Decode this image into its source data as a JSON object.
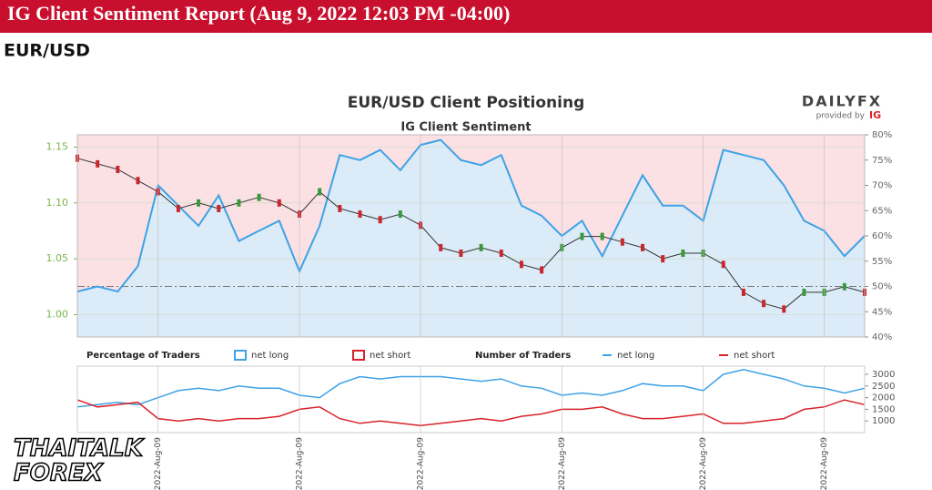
{
  "header": {
    "title": "IG Client Sentiment Report (Aug 9, 2022 12:03 PM -04:00)",
    "pair": "EUR/USD"
  },
  "logo": {
    "name": "DAILYFX",
    "provided": "provided by",
    "brand": "IG"
  },
  "watermark": {
    "line1": "THAITALK",
    "line2": "FOREX"
  },
  "chart_data": [
    {
      "type": "line",
      "title": "EUR/USD Client Positioning",
      "subtitle": "IG Client Sentiment",
      "categories": [
        null,
        null,
        null,
        null,
        "2022-Aug-09",
        null,
        null,
        null,
        null,
        null,
        null,
        "2022-Aug-09",
        null,
        null,
        null,
        null,
        null,
        "2022-Aug-09",
        null,
        null,
        null,
        null,
        null,
        null,
        "2022-Aug-09",
        null,
        null,
        null,
        null,
        null,
        null,
        "2022-Aug-09",
        null,
        null,
        null,
        null,
        null,
        "2022-Aug-09",
        null,
        null
      ],
      "ylim": [
        0.98,
        1.161
      ],
      "yticks": [
        {
          "value": 1,
          "label": "1.00"
        },
        1.05,
        {
          "value": 1.1,
          "label": "1.10"
        },
        1.15
      ],
      "y2lim": [
        40,
        80
      ],
      "y2ticks": [
        {
          "value": 40,
          "label": "40%"
        },
        {
          "value": 45,
          "label": "45%"
        },
        {
          "value": 50,
          "label": "50%"
        },
        {
          "value": 55,
          "label": "55%"
        },
        {
          "value": 60,
          "label": "60%"
        },
        {
          "value": 65,
          "label": "65%"
        },
        {
          "value": 70,
          "label": "70%"
        },
        {
          "value": 75,
          "label": "75%"
        },
        {
          "value": 80,
          "label": "80%"
        }
      ],
      "y2ref": 50,
      "grid": true,
      "legend_title": "Percentage of Traders",
      "legend_labels": [
        "net long",
        "net short"
      ],
      "legend_colors": [
        "#3ea2e6",
        "#d8232a"
      ],
      "series": [
        {
          "color": "#333333",
          "values": [
            1.14,
            1.135,
            1.13,
            1.12,
            1.11,
            1.095,
            1.1,
            1.095,
            1.1,
            1.105,
            1.1,
            1.09,
            1.11,
            1.095,
            1.09,
            1.085,
            1.09,
            1.08,
            1.06,
            1.055,
            1.06,
            1.055,
            1.045,
            1.04,
            1.06,
            1.07,
            1.07,
            1.065,
            1.06,
            1.05,
            1.055,
            1.055,
            1.045,
            1.02,
            1.01,
            1.005,
            1.02,
            1.02,
            1.025,
            1.02
          ]
        },
        {
          "name": "net long",
          "color": "#3ea2e6",
          "axis": "y2",
          "values": [
            49,
            50,
            49,
            54,
            70,
            66,
            62,
            68,
            59,
            61,
            63,
            53,
            62,
            76,
            75,
            77,
            73,
            78,
            79,
            75,
            74,
            76,
            66,
            64,
            60,
            63,
            56,
            64,
            72,
            66,
            66,
            63,
            77,
            76,
            75,
            70,
            63,
            61,
            56,
            60
          ]
        }
      ]
    },
    {
      "type": "line",
      "ylim": [
        500,
        3350
      ],
      "yticks": [
        1000,
        1500,
        2000,
        2500,
        3000
      ],
      "legend_title": "Number of Traders",
      "series": [
        {
          "name": "net long",
          "color": "#3ea2e6",
          "values": [
            1600,
            1700,
            1800,
            1700,
            2000,
            2300,
            2400,
            2300,
            2500,
            2400,
            2400,
            2100,
            2000,
            2600,
            2900,
            2800,
            2900,
            2900,
            2900,
            2800,
            2700,
            2800,
            2500,
            2400,
            2100,
            2200,
            2100,
            2300,
            2600,
            2500,
            2500,
            2300,
            3000,
            3200,
            3000,
            2800,
            2500,
            2400,
            2200,
            2400
          ]
        },
        {
          "name": "net short",
          "color": "#d8232a",
          "values": [
            1900,
            1600,
            1700,
            1800,
            1100,
            1000,
            1100,
            1000,
            1100,
            1100,
            1200,
            1500,
            1600,
            1100,
            900,
            1000,
            900,
            800,
            900,
            1000,
            1100,
            1000,
            1200,
            1300,
            1500,
            1500,
            1600,
            1300,
            1100,
            1100,
            1200,
            1300,
            900,
            900,
            1000,
            1100,
            1500,
            1600,
            1900,
            1700
          ]
        }
      ]
    }
  ]
}
